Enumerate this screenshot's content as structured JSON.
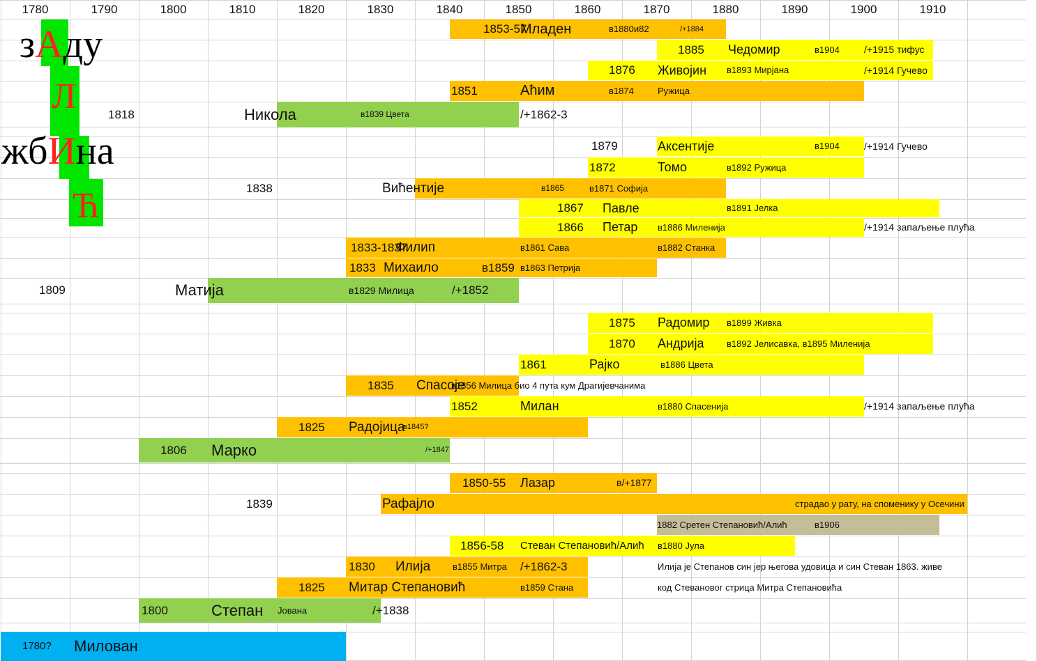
{
  "colors": {
    "green": "#92d050",
    "orange": "#ffc000",
    "yellow": "#ffff00",
    "tan": "#c4bd97",
    "blue": "#00b0f0",
    "grid": "#d4d4d4",
    "title_red": "#ff2020",
    "title_green": "#00e600"
  },
  "header": {
    "years": [
      "1780",
      "1790",
      "1800",
      "1810",
      "1820",
      "1830",
      "1840",
      "1850",
      "1860",
      "1870",
      "1880",
      "1890",
      "1900",
      "1910"
    ]
  },
  "title": {
    "word1": [
      "з",
      "А",
      "ду"
    ],
    "letter2": "Л",
    "word3": [
      "жб",
      "И",
      "на"
    ],
    "letter4": "Ћ"
  },
  "rows": [
    {
      "start": 1845,
      "end": 1885,
      "color": "orange",
      "labels": [
        {
          "year": 1849.9,
          "text": "1853-57",
          "size": 17
        },
        {
          "year": 1855.3,
          "text": "Младен",
          "size": 20
        },
        {
          "year": 1868.1,
          "text": "в1880и82",
          "size": 13
        },
        {
          "year": 1878.4,
          "text": "/+1884",
          "size": 11
        }
      ]
    },
    {
      "start": 1875,
      "end": 1915,
      "color": "yellow",
      "labels": [
        {
          "year": 1878.1,
          "text": "1885",
          "size": 17
        },
        {
          "year": 1885.4,
          "text": "Чедомир",
          "size": 18
        },
        {
          "year": 1897.9,
          "text": "в1904",
          "size": 13
        },
        {
          "year": 1905.1,
          "text": "/+1915 тифус",
          "size": 14
        }
      ]
    },
    {
      "start": 1865,
      "end": 1915,
      "color": "yellow",
      "labels": [
        {
          "year": 1868.1,
          "text": "1876",
          "size": 17
        },
        {
          "year": 1875.2,
          "text": "Живојин",
          "size": 18
        },
        {
          "year": 1885.2,
          "text": "в1893 Мирјана",
          "size": 13
        },
        {
          "year": 1905.1,
          "text": "/+1914 Гучево",
          "size": 14
        }
      ]
    },
    {
      "start": 1845,
      "end": 1905,
      "color": "orange",
      "labels": [
        {
          "year": 1845.3,
          "text": "1851",
          "size": 17
        },
        {
          "year": 1855.3,
          "text": "Аћим",
          "size": 20
        },
        {
          "year": 1868.1,
          "text": "в1874",
          "size": 13
        },
        {
          "year": 1875.2,
          "text": "Ружица",
          "size": 13
        }
      ]
    },
    {
      "start": 1820,
      "end": 1855,
      "color": "green",
      "labels": [
        {
          "year": 1795.6,
          "text": "1818",
          "size": 17
        },
        {
          "year": 1815.3,
          "text": "Никола",
          "size": 22
        },
        {
          "year": 1832.1,
          "text": "в1839 Цвета",
          "size": 12
        },
        {
          "year": 1855.3,
          "text": "/+1862-3",
          "size": 17
        }
      ]
    },
    {
      "start": 1875,
      "end": 1905,
      "color": "yellow",
      "labels": [
        {
          "year": 1865.6,
          "text": "1879",
          "size": 17
        },
        {
          "year": 1875.2,
          "text": "Аксентије",
          "size": 18
        },
        {
          "year": 1897.9,
          "text": "в1904",
          "size": 13
        },
        {
          "year": 1905.1,
          "text": "/+1914 Гучево",
          "size": 14
        }
      ]
    },
    {
      "start": 1865,
      "end": 1905,
      "color": "yellow",
      "labels": [
        {
          "year": 1865.3,
          "text": "1872",
          "size": 17
        },
        {
          "year": 1875.2,
          "text": "Томо",
          "size": 18
        },
        {
          "year": 1885.2,
          "text": "в1892 Ружица",
          "size": 13
        }
      ]
    },
    {
      "start": 1840,
      "end": 1885,
      "color": "orange",
      "labels": [
        {
          "year": 1815.6,
          "text": "1838",
          "size": 17
        },
        {
          "year": 1835.3,
          "text": "Вићентије",
          "size": 19
        },
        {
          "year": 1858.3,
          "text": "в1865",
          "size": 12
        },
        {
          "year": 1865.3,
          "text": "в1871 Софија",
          "size": 13
        }
      ]
    },
    {
      "start": 1855,
      "end": 1916,
      "color": "yellow",
      "labels": [
        {
          "year": 1860.6,
          "text": "1867",
          "size": 17
        },
        {
          "year": 1867.2,
          "text": "Павле",
          "size": 18
        },
        {
          "year": 1885.2,
          "text": "в1891 Јелка",
          "size": 13
        }
      ]
    },
    {
      "start": 1855,
      "end": 1905,
      "color": "yellow",
      "labels": [
        {
          "year": 1860.6,
          "text": "1866",
          "size": 17
        },
        {
          "year": 1867.2,
          "text": "Петар",
          "size": 18
        },
        {
          "year": 1875.2,
          "text": "в1886 Миленија",
          "size": 13
        },
        {
          "year": 1905.1,
          "text": "/+1914 запаљење плућа",
          "size": 14
        }
      ]
    },
    {
      "start": 1830,
      "end": 1885,
      "color": "orange",
      "labels": [
        {
          "year": 1830.7,
          "text": "1833-1837",
          "size": 17
        },
        {
          "year": 1837.2,
          "text": "Филип",
          "size": 19
        },
        {
          "year": 1855.3,
          "text": "в1861 Сава",
          "size": 13
        },
        {
          "year": 1875.2,
          "text": "в1882 Станка",
          "size": 13
        }
      ]
    },
    {
      "start": 1830,
      "end": 1875,
      "color": "orange",
      "labels": [
        {
          "year": 1830.5,
          "text": "1833",
          "size": 17
        },
        {
          "year": 1835.5,
          "text": "Михаило",
          "size": 19
        },
        {
          "year": 1849.7,
          "text": "в1859",
          "size": 17
        },
        {
          "year": 1855.3,
          "text": "в1863 Петрија",
          "size": 13
        }
      ]
    },
    {
      "start": 1810,
      "end": 1855,
      "color": "green",
      "labels": [
        {
          "year": 1785.6,
          "text": "1809",
          "size": 17
        },
        {
          "year": 1805.3,
          "text": "Матија",
          "size": 22
        },
        {
          "year": 1830.4,
          "text": "в1829 Милица",
          "size": 14
        },
        {
          "year": 1845.4,
          "text": "/+1852",
          "size": 17
        }
      ]
    },
    {
      "start": 1865,
      "end": 1915,
      "color": "yellow",
      "labels": [
        {
          "year": 1868.1,
          "text": "1875",
          "size": 17
        },
        {
          "year": 1875.2,
          "text": "Радомир",
          "size": 18
        },
        {
          "year": 1885.2,
          "text": "в1899 Живка",
          "size": 13
        }
      ]
    },
    {
      "start": 1865,
      "end": 1915,
      "color": "yellow",
      "labels": [
        {
          "year": 1868.1,
          "text": "1870",
          "size": 17
        },
        {
          "year": 1875.2,
          "text": "Андрија",
          "size": 18
        },
        {
          "year": 1885.2,
          "text": "в1892 Јелисавка, в1895 Миленија",
          "size": 13
        }
      ]
    },
    {
      "start": 1855,
      "end": 1905,
      "color": "yellow",
      "labels": [
        {
          "year": 1855.3,
          "text": "1861",
          "size": 17
        },
        {
          "year": 1865.3,
          "text": "Рајко",
          "size": 18
        },
        {
          "year": 1875.6,
          "text": "в1886 Цвета",
          "size": 13
        }
      ]
    },
    {
      "start": 1830,
      "end": 1855,
      "color": "orange",
      "labels": [
        {
          "year": 1833.1,
          "text": "1835",
          "size": 17
        },
        {
          "year": 1840.2,
          "text": "Спасоје",
          "size": 19
        },
        {
          "year": 1845.3,
          "text": "в1856 Милица био 4 пута кум Драгијевчанима",
          "size": 13
        }
      ]
    },
    {
      "start": 1845,
      "end": 1905,
      "color": "yellow",
      "labels": [
        {
          "year": 1845.3,
          "text": "1852",
          "size": 17
        },
        {
          "year": 1855.3,
          "text": "Милан",
          "size": 18
        },
        {
          "year": 1875.2,
          "text": "в1880 Спасенија",
          "size": 13
        },
        {
          "year": 1905.1,
          "text": "/+1914 запаљење плућа",
          "size": 14
        }
      ]
    },
    {
      "start": 1820,
      "end": 1865,
      "color": "orange",
      "labels": [
        {
          "year": 1823.1,
          "text": "1825",
          "size": 17
        },
        {
          "year": 1830.4,
          "text": "Радојица",
          "size": 19
        },
        {
          "year": 1838.3,
          "text": "в1845?",
          "size": 11
        }
      ]
    },
    {
      "start": 1800,
      "end": 1845,
      "color": "green",
      "labels": [
        {
          "year": 1803.1,
          "text": "1806",
          "size": 17
        },
        {
          "year": 1810.5,
          "text": "Марко",
          "size": 22
        },
        {
          "year": 1841.5,
          "text": "/+1847",
          "size": 11
        }
      ]
    },
    {
      "start": 1845,
      "end": 1875,
      "color": "orange",
      "labels": [
        {
          "year": 1846.9,
          "text": "1850-55",
          "size": 17
        },
        {
          "year": 1855.3,
          "text": "Лазар",
          "size": 18
        },
        {
          "year": 1869.2,
          "text": "в/+1877",
          "size": 14
        }
      ]
    },
    {
      "start": 1835,
      "end": 1920,
      "color": "orange",
      "labels": [
        {
          "year": 1815.6,
          "text": "1839",
          "size": 17
        },
        {
          "year": 1835.3,
          "text": "Рафајло",
          "size": 19
        },
        {
          "year": 1895.0,
          "text": "страдао у рату, на споменику у Осечини",
          "size": 13
        }
      ]
    },
    {
      "start": 1875,
      "end": 1916,
      "color": "tan",
      "labels": [
        {
          "year": 1875.1,
          "text": "1882 Сретен Степановић/Алић",
          "size": 13,
          "clipEnd": 1885
        },
        {
          "year": 1897.9,
          "text": "в1906",
          "size": 13
        }
      ]
    },
    {
      "start": 1845,
      "end": 1895,
      "color": "yellow",
      "labels": [
        {
          "year": 1846.6,
          "text": "1856-58",
          "size": 17
        },
        {
          "year": 1855.3,
          "text": "Стеван Степановић/Алић",
          "size": 15,
          "clipEnd": 1875
        },
        {
          "year": 1875.2,
          "text": "в1880 Јула",
          "size": 13
        }
      ]
    },
    {
      "start": 1830,
      "end": 1865,
      "color": "orange",
      "labels": [
        {
          "year": 1830.4,
          "text": "1830",
          "size": 17
        },
        {
          "year": 1837.2,
          "text": "Илија",
          "size": 19
        },
        {
          "year": 1845.5,
          "text": "в1855 Митра",
          "size": 13
        },
        {
          "year": 1855.3,
          "text": "/+1862-3",
          "size": 17
        },
        {
          "year": 1875.2,
          "text": "Илија је Степанов син јер његова удовица и син Стеван 1863. живе",
          "size": 13
        }
      ]
    },
    {
      "start": 1820,
      "end": 1865,
      "color": "orange",
      "labels": [
        {
          "year": 1823.1,
          "text": "1825",
          "size": 17
        },
        {
          "year": 1830.4,
          "text": "Митар Степановић",
          "size": 19
        },
        {
          "year": 1855.3,
          "text": "в1859 Стана",
          "size": 13
        },
        {
          "year": 1875.2,
          "text": "код Стевановог стрица Митра Степановића",
          "size": 13
        }
      ]
    },
    {
      "start": 1800,
      "end": 1835,
      "color": "green",
      "labels": [
        {
          "year": 1800.4,
          "text": "1800",
          "size": 17
        },
        {
          "year": 1810.5,
          "text": "Степан",
          "size": 22
        },
        {
          "year": 1820.1,
          "text": "Јована",
          "size": 13
        },
        {
          "year": 1833.8,
          "text": "/+1838",
          "size": 17
        }
      ]
    },
    {
      "start": 1780,
      "end": 1830,
      "color": "blue",
      "labels": [
        {
          "year": 1783.1,
          "text": "1780?",
          "size": 15
        },
        {
          "year": 1790.6,
          "text": "Милован",
          "size": 22
        }
      ]
    }
  ]
}
